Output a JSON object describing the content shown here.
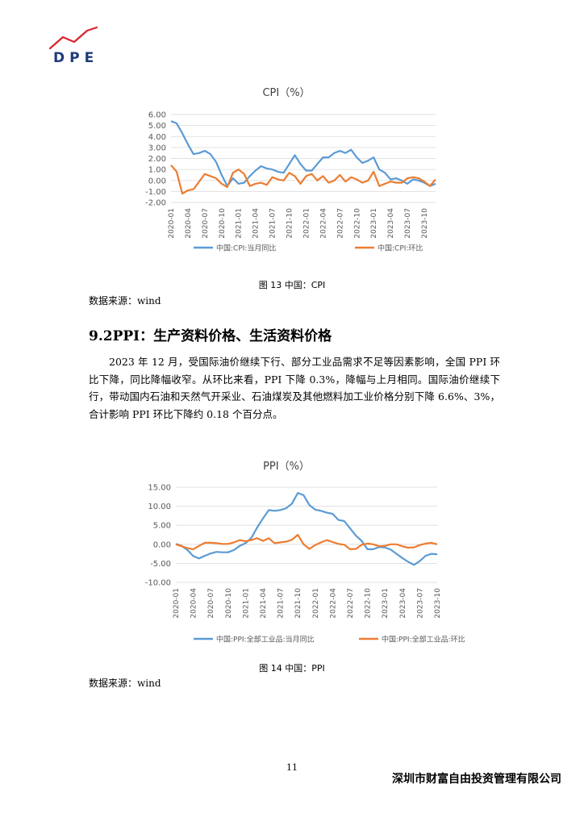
{
  "header": {
    "logo_text": "DPE",
    "logo_colors": {
      "swoosh": "#d9232e",
      "text": "#1f3b7a"
    }
  },
  "cpi_chart": {
    "caption": "图 13 中国：CPI",
    "source": "数据来源：wind"
  },
  "section": {
    "heading": "9.2PPI：生产资料价格、生活资料价格",
    "paragraph": "2023 年 12 月，受国际油价继续下行、部分工业品需求不足等因素影响，全国 PPI 环比下降，同比降幅收窄。从环比来看，PPI 下降 0.3%，降幅与上月相同。国际油价继续下行，带动国内石油和天然气开采业、石油煤炭及其他燃料加工业价格分别下降 6.6%、3%，合计影响 PPI 环比下降约 0.18 个百分点。"
  },
  "ppi_chart": {
    "caption": "图 14 中国：PPI",
    "source": "数据来源：wind"
  },
  "footer": {
    "page_number": "11",
    "company": "深圳市财富自由投资管理有限公司"
  },
  "chart_data": [
    {
      "type": "line",
      "title": "CPI（%）",
      "ylim": [
        -2,
        6
      ],
      "yticks": [
        "6.00",
        "5.00",
        "4.00",
        "3.00",
        "2.00",
        "1.00",
        "0.00",
        "-1.00",
        "-2.00"
      ],
      "x_tick_labels": [
        "2020-01",
        "2020-04",
        "2020-07",
        "2020-10",
        "2021-01",
        "2021-04",
        "2021-07",
        "2021-10",
        "2022-01",
        "2022-04",
        "2022-07",
        "2022-10",
        "2023-01",
        "2023-04",
        "2023-07",
        "2023-10"
      ],
      "grid": true,
      "legend": "bottom",
      "series": [
        {
          "name": "中国:CPI:当月同比",
          "color": "#5b9bd5",
          "values": [
            5.4,
            5.2,
            4.3,
            3.3,
            2.4,
            2.5,
            2.7,
            2.4,
            1.7,
            0.5,
            -0.5,
            0.2,
            -0.3,
            -0.2,
            0.4,
            0.9,
            1.3,
            1.1,
            1.0,
            0.8,
            0.7,
            1.5,
            2.3,
            1.5,
            0.9,
            0.9,
            1.5,
            2.1,
            2.1,
            2.5,
            2.7,
            2.5,
            2.8,
            2.1,
            1.6,
            1.8,
            2.1,
            1.0,
            0.7,
            0.1,
            0.2,
            0.0,
            -0.3,
            0.1,
            0.0,
            -0.2,
            -0.5,
            -0.3
          ]
        },
        {
          "name": "中国:CPI:环比",
          "color": "#ed7d31",
          "values": [
            1.4,
            0.8,
            -1.2,
            -0.9,
            -0.8,
            -0.1,
            0.6,
            0.4,
            0.2,
            -0.3,
            -0.6,
            0.7,
            1.0,
            0.6,
            -0.5,
            -0.3,
            -0.2,
            -0.4,
            0.3,
            0.1,
            0.0,
            0.7,
            0.4,
            -0.3,
            0.4,
            0.6,
            0.0,
            0.4,
            -0.2,
            0.0,
            0.5,
            -0.1,
            0.3,
            0.1,
            -0.2,
            0.0,
            0.8,
            -0.5,
            -0.3,
            -0.1,
            -0.2,
            -0.2,
            0.2,
            0.3,
            0.2,
            -0.1,
            -0.5,
            0.1
          ]
        }
      ]
    },
    {
      "type": "line",
      "title": "PPI（%）",
      "ylim": [
        -10,
        15
      ],
      "yticks": [
        "15.00",
        "10.00",
        "5.00",
        "0.00",
        "-5.00",
        "-10.00"
      ],
      "x_tick_labels": [
        "2020-01",
        "2020-04",
        "2020-07",
        "2020-10",
        "2021-01",
        "2021-04",
        "2021-07",
        "2021-10",
        "2022-01",
        "2022-04",
        "2022-07",
        "2022-10",
        "2023-01",
        "2023-04",
        "2023-07",
        "2023-10"
      ],
      "grid": true,
      "legend": "bottom",
      "series": [
        {
          "name": "中国:PPI:全部工业品:当月同比",
          "color": "#5b9bd5",
          "values": [
            0.1,
            -0.4,
            -1.5,
            -3.1,
            -3.7,
            -3.0,
            -2.4,
            -2.0,
            -2.1,
            -2.1,
            -1.5,
            -0.4,
            0.3,
            1.7,
            4.4,
            6.8,
            9.0,
            8.8,
            9.0,
            9.5,
            10.7,
            13.5,
            12.9,
            10.3,
            9.1,
            8.8,
            8.3,
            8.0,
            6.4,
            6.1,
            4.2,
            2.3,
            0.9,
            -1.3,
            -1.3,
            -0.7,
            -0.8,
            -1.4,
            -2.5,
            -3.6,
            -4.6,
            -5.4,
            -4.4,
            -3.0,
            -2.5,
            -2.6
          ]
        },
        {
          "name": "中国:PPI:全部工业品:环比",
          "color": "#ed7d31",
          "values": [
            0.0,
            -0.5,
            -1.0,
            -1.3,
            -0.4,
            0.4,
            0.4,
            0.3,
            0.1,
            0.1,
            0.5,
            1.1,
            0.8,
            1.1,
            1.6,
            0.9,
            1.6,
            0.3,
            0.5,
            0.7,
            1.2,
            2.5,
            0.0,
            -1.2,
            -0.2,
            0.5,
            1.1,
            0.6,
            0.1,
            -0.1,
            -1.3,
            -1.2,
            -0.1,
            0.2,
            0.0,
            -0.5,
            -0.4,
            0.0,
            0.0,
            -0.5,
            -0.9,
            -0.8,
            -0.2,
            0.2,
            0.4,
            0.0
          ]
        }
      ]
    }
  ]
}
